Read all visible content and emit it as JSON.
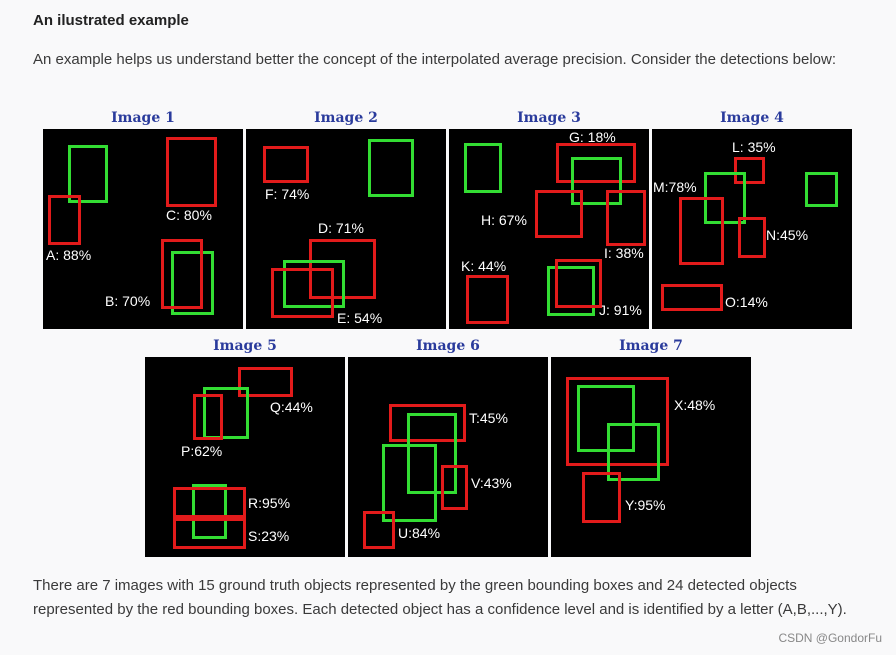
{
  "heading": "An ilustrated example",
  "intro": "An example helps us understand better the concept of the interpolated average precision. Consider the detections below:",
  "outro": "There are 7 images with 15 ground truth objects represented by the green bounding boxes and 24 detected objects represented by the red bounding boxes. Each detected object has a confidence level and is identified by a letter (A,B,...,Y).",
  "captions": [
    "Image  1",
    "Image  2",
    "Image  3",
    "Image  4",
    "Image  5",
    "Image  6",
    "Image  7"
  ],
  "labels": {
    "A": "A: 88%",
    "B": "B: 70%",
    "C": "C: 80%",
    "D": "D: 71%",
    "E": "E: 54%",
    "F": "F: 74%",
    "G": "G: 18%",
    "H": "H: 67%",
    "I": "I: 38%",
    "J": "J: 91%",
    "K": "K: 44%",
    "L": "L: 35%",
    "M": "M:78%",
    "N": "N:45%",
    "O": "O:14%",
    "P": "P:62%",
    "Q": "Q:44%",
    "R": "R:95%",
    "S": "S:23%",
    "T": "T:45%",
    "U": "U:84%",
    "V": "V:43%",
    "X": "X:48%",
    "Y": "Y:95%"
  },
  "watermark": "CSDN @GondorFu",
  "colors": {
    "ground_truth": "#33dd33",
    "detection": "#e21b1b",
    "caption": "#2a3b9c"
  }
}
